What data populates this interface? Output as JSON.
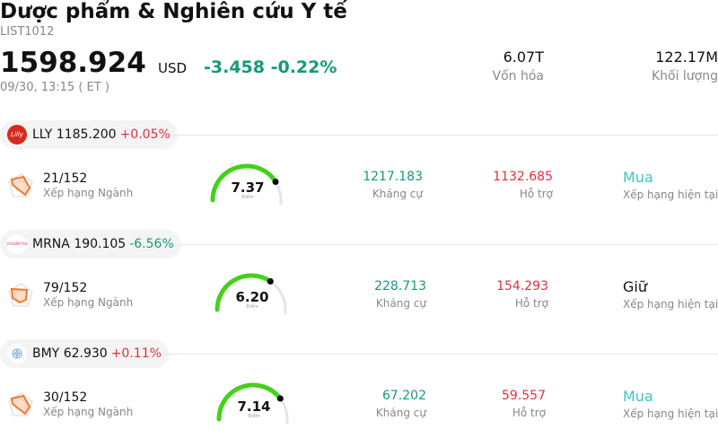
{
  "header": {
    "title": "Dược phẩm & Nghiên cứu Y tế",
    "code": "LIST1012",
    "price": "1598.924",
    "currency": "USD",
    "change": "-3.458 -0.22%",
    "time": "09/30, 13:15  ( ET )"
  },
  "stats": [
    {
      "value": "6.07T",
      "label": "Vốn hóa"
    },
    {
      "value": "122.17M",
      "label": "Khối lượng"
    }
  ],
  "stocks": [
    {
      "ticker": "LLY",
      "price": "1185.200",
      "change": "+0.05%",
      "change_dir": "up",
      "logo_text": "Lilly",
      "logo_color": "#d52b1e",
      "rank": "21/152",
      "rank_label": "Xếp hạng Ngành",
      "score": "7.37",
      "score_value": 7.37,
      "score_label": "Điểm",
      "resistance": "1217.183",
      "resistance_label": "Kháng cự",
      "support": "1132.685",
      "support_label": "Hỗ trợ",
      "rating": "Mua",
      "rating_color": "#3cc4c4",
      "rating_label": "Xếp hạng hiện tại"
    },
    {
      "ticker": "MRNA",
      "price": "190.105",
      "change": "-6.56%",
      "change_dir": "down",
      "logo_text": "moderna",
      "logo_color": "#e05060",
      "rank": "79/152",
      "rank_label": "Xếp hạng Ngành",
      "score": "6.20",
      "score_value": 6.2,
      "score_label": "Điểm",
      "resistance": "228.713",
      "resistance_label": "Kháng cự",
      "support": "154.293",
      "support_label": "Hỗ trợ",
      "rating": "Giữ",
      "rating_color": "#111111",
      "rating_label": "Xếp hạng hiện tại"
    },
    {
      "ticker": "BMY",
      "price": "62.930",
      "change": "+0.11%",
      "change_dir": "up",
      "logo_text": "",
      "logo_color": "#7aa7d8",
      "rank": "30/152",
      "rank_label": "Xếp hạng Ngành",
      "score": "7.14",
      "score_value": 7.14,
      "score_label": "Điểm",
      "resistance": "67.202",
      "resistance_label": "Kháng cự",
      "support": "59.557",
      "support_label": "Hỗ trợ",
      "rating": "Mua",
      "rating_color": "#3cc4c4",
      "rating_label": "Xếp hạng hiện tại"
    }
  ],
  "colors": {
    "positive": "#159a7c",
    "negative": "#e03040",
    "gauge_fill": "#44d11a",
    "gauge_track": "#e4e4ec"
  }
}
